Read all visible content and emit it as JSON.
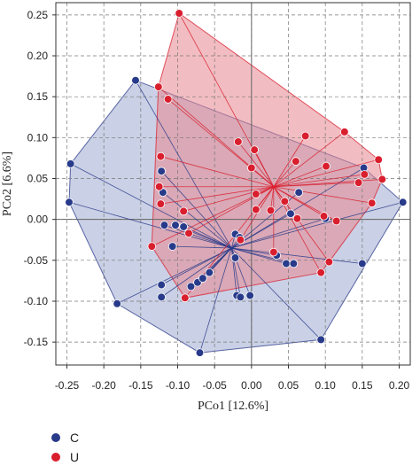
{
  "chart_data": {
    "type": "scatter",
    "xlabel": "PCo1 [12.6%]",
    "ylabel": "PCo2 [6.6%]",
    "xlim": [
      -0.265,
      0.215
    ],
    "ylim": [
      -0.178,
      0.265
    ],
    "xticks": [
      -0.25,
      -0.2,
      -0.15,
      -0.1,
      -0.05,
      0.0,
      0.05,
      0.1,
      0.15,
      0.2
    ],
    "xtick_labels": [
      "-0.25",
      "-0.20",
      "-0.15",
      "-0.10",
      "-0.05",
      "0.00",
      "0.05",
      "0.10",
      "0.15",
      "0.20"
    ],
    "yticks": [
      -0.15,
      -0.1,
      -0.05,
      0.0,
      0.05,
      0.1,
      0.15,
      0.2,
      0.25
    ],
    "ytick_labels": [
      "-0.15",
      "-0.10",
      "-0.05",
      "0.00",
      "0.05",
      "0.10",
      "0.15",
      "0.20",
      "0.25"
    ],
    "grid": true,
    "zero_lines": true,
    "legend_position": "bottom-left",
    "series": [
      {
        "name": "C",
        "color": "#283a8a",
        "fill": "#9fa9d0",
        "centroid": [
          -0.027,
          -0.035
        ],
        "points": [
          [
            -0.157,
            0.17
          ],
          [
            -0.245,
            0.068
          ],
          [
            -0.247,
            0.021
          ],
          [
            -0.182,
            -0.103
          ],
          [
            -0.07,
            -0.163
          ],
          [
            0.094,
            -0.147
          ],
          [
            0.205,
            0.021
          ],
          [
            0.152,
            0.063
          ],
          [
            -0.122,
            0.059
          ],
          [
            -0.12,
            0.033
          ],
          [
            -0.118,
            -0.007
          ],
          [
            -0.103,
            -0.007
          ],
          [
            -0.092,
            -0.009
          ],
          [
            -0.107,
            -0.033
          ],
          [
            -0.122,
            -0.08
          ],
          [
            -0.122,
            -0.095
          ],
          [
            -0.082,
            -0.082
          ],
          [
            -0.073,
            -0.077
          ],
          [
            -0.066,
            -0.072
          ],
          [
            -0.057,
            -0.065
          ],
          [
            -0.022,
            -0.047
          ],
          [
            -0.02,
            -0.093
          ],
          [
            -0.015,
            -0.095
          ],
          [
            -0.002,
            -0.093
          ],
          [
            -0.022,
            -0.018
          ],
          [
            -0.016,
            -0.022
          ],
          [
            0.034,
            -0.044
          ],
          [
            0.047,
            -0.054
          ],
          [
            0.057,
            -0.054
          ],
          [
            0.053,
            0.007
          ],
          [
            0.064,
            0.033
          ],
          [
            0.1,
            0.001
          ],
          [
            0.15,
            -0.054
          ]
        ]
      },
      {
        "name": "U",
        "color": "#d91e2e",
        "fill": "#e8878f",
        "centroid": [
          0.03,
          0.04
        ],
        "points": [
          [
            -0.098,
            0.252
          ],
          [
            -0.126,
            0.162
          ],
          [
            -0.113,
            0.147
          ],
          [
            -0.135,
            -0.033
          ],
          [
            -0.09,
            -0.096
          ],
          [
            0.094,
            -0.065
          ],
          [
            0.177,
            0.049
          ],
          [
            0.172,
            0.073
          ],
          [
            0.126,
            0.107
          ],
          [
            0.073,
            0.102
          ],
          [
            -0.018,
            0.095
          ],
          [
            -0.123,
            0.077
          ],
          [
            -0.125,
            0.04
          ],
          [
            -0.123,
            0.019
          ],
          [
            -0.092,
            0.01
          ],
          [
            -0.085,
            -0.017
          ],
          [
            -0.015,
            -0.025
          ],
          [
            0.0,
            0.063
          ],
          [
            0.004,
            0.085
          ],
          [
            0.006,
            0.031
          ],
          [
            0.006,
            0.012
          ],
          [
            0.026,
            0.011
          ],
          [
            0.045,
            0.022
          ],
          [
            0.06,
            0.071
          ],
          [
            0.03,
            -0.04
          ],
          [
            0.062,
            0.001
          ],
          [
            0.098,
            0.004
          ],
          [
            0.115,
            -0.002
          ],
          [
            0.101,
            0.065
          ],
          [
            0.145,
            0.045
          ],
          [
            0.153,
            0.055
          ],
          [
            0.163,
            0.02
          ],
          [
            0.105,
            -0.052
          ]
        ]
      }
    ]
  }
}
